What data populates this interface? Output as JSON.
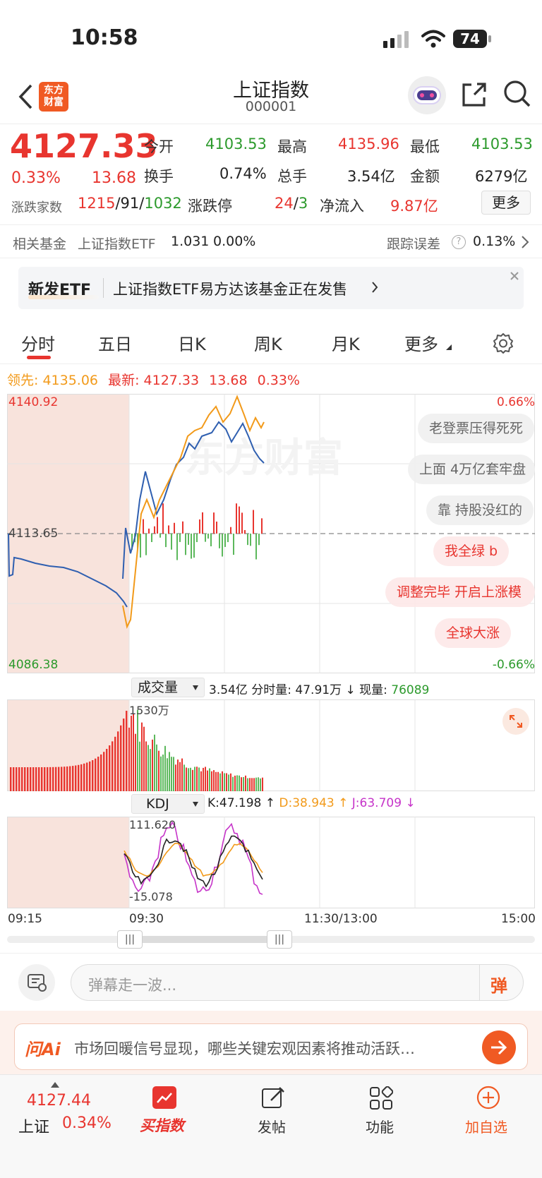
{
  "status_bar": {
    "time": "10:58",
    "battery": "74"
  },
  "header": {
    "brand_line1": "东方",
    "brand_line2": "财富",
    "title": "上证指数",
    "code": "000001"
  },
  "quote": {
    "price": "4127.33",
    "change_pct": "0.33%",
    "change": "13.68",
    "open_label": "今开",
    "open": "4103.53",
    "high_label": "最高",
    "high": "4135.96",
    "low_label": "最低",
    "low": "4103.53",
    "turnover_label": "换手",
    "turnover": "0.74%",
    "volume_label": "总手",
    "volume": "3.54亿",
    "amount_label": "金额",
    "amount": "6279亿",
    "breadth_label": "涨跌家数",
    "breadth_up": "1215",
    "breadth_flat": "91",
    "breadth_down": "1032",
    "sep": "/",
    "limit_label": "涨跌停",
    "limit_up": "24",
    "limit_down": "3",
    "netflow_label": "净流入",
    "netflow": "9.87亿",
    "more_button": "更多"
  },
  "fund": {
    "label": "相关基金",
    "name": "上证指数ETF",
    "price": "1.031",
    "pct": "0.00%",
    "error_label": "跟踪误差",
    "error": "0.13%"
  },
  "etf_banner": {
    "tag": "新发ETF",
    "text": "上证指数ETF易方达该基金正在发售"
  },
  "tabs": [
    "分时",
    "五日",
    "日K",
    "周K",
    "月K",
    "更多"
  ],
  "active_tab": 0,
  "lead": {
    "lead_label": "领先:",
    "lead": "4135.06",
    "latest_label": "最新:",
    "latest": "4127.33",
    "change": "13.68",
    "pct": "0.33%"
  },
  "chart_labels": {
    "max": "4140.92",
    "mid": "4113.65",
    "min": "4086.38",
    "pct_max": "0.66%",
    "pct_min": "-0.66%",
    "watermark": "东方财富"
  },
  "danmu": [
    "老登票压得死死",
    "上面 4万亿套牢盘",
    "靠 持股没红的",
    "我全绿 b",
    "调整完毕 开启上涨模",
    "全球大涨"
  ],
  "volume_bar": {
    "selector": "成交量",
    "total": "3.54亿",
    "minute_label": "分时量:",
    "minute": "47.91万",
    "arrow": "↓",
    "now_label": "现量:",
    "now": "76089",
    "peak": "1530万"
  },
  "kdj": {
    "selector": "KDJ",
    "k": "K:47.198",
    "d": "D:38.943",
    "j": "J:63.709",
    "up": "↑",
    "down": "↓",
    "max": "111.620",
    "min": "-15.078"
  },
  "time_axis": [
    "09:15",
    "09:30",
    "11:30/13:00",
    "15:00"
  ],
  "comment": {
    "placeholder": "弹幕走一波...",
    "danmu_btn": "弹"
  },
  "ai": {
    "logo": "问Ai",
    "text": "市场回暖信号显现，哪些关键宏观因素将推动活跃…"
  },
  "bottom_nav": {
    "index_price": "4127.44",
    "index_name": "上证",
    "index_pct": "0.34%",
    "items": [
      "买指数",
      "发帖",
      "功能",
      "加自选"
    ]
  },
  "colors": {
    "red": "#e8352f",
    "green": "#2c9a2c",
    "orange": "#f29a1a",
    "blue": "#2f5fb0",
    "purple": "#c634c9",
    "brand": "#f05a23"
  }
}
